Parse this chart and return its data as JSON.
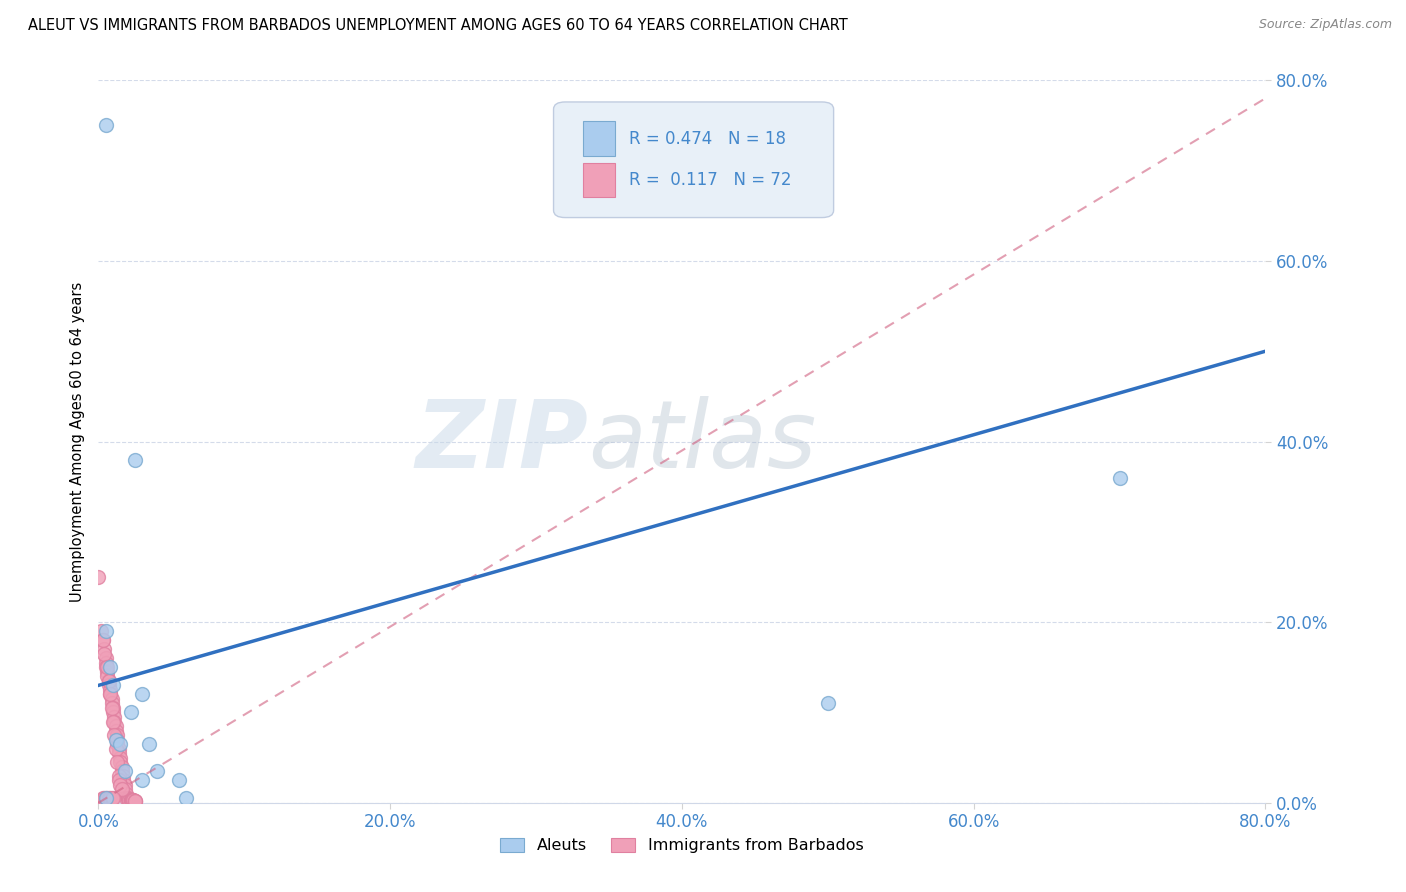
{
  "title": "ALEUT VS IMMIGRANTS FROM BARBADOS UNEMPLOYMENT AMONG AGES 60 TO 64 YEARS CORRELATION CHART",
  "source": "Source: ZipAtlas.com",
  "ylabel": "Unemployment Among Ages 60 to 64 years",
  "xlim": [
    0.0,
    0.8
  ],
  "ylim": [
    0.0,
    0.8
  ],
  "xticks": [
    0.0,
    0.2,
    0.4,
    0.6,
    0.8
  ],
  "yticks": [
    0.0,
    0.2,
    0.4,
    0.6,
    0.8
  ],
  "xticklabels": [
    "0.0%",
    "20.0%",
    "40.0%",
    "60.0%",
    "80.0%"
  ],
  "yticklabels": [
    "0.0%",
    "20.0%",
    "40.0%",
    "60.0%",
    "80.0%"
  ],
  "aleuts_x": [
    0.005,
    0.005,
    0.008,
    0.01,
    0.012,
    0.015,
    0.018,
    0.022,
    0.025,
    0.03,
    0.035,
    0.04,
    0.055,
    0.06,
    0.5,
    0.7,
    0.03,
    0.005
  ],
  "aleuts_y": [
    0.75,
    0.19,
    0.15,
    0.13,
    0.07,
    0.065,
    0.035,
    0.1,
    0.38,
    0.12,
    0.065,
    0.035,
    0.025,
    0.005,
    0.11,
    0.36,
    0.025,
    0.005
  ],
  "barbados_x": [
    0.0,
    0.002,
    0.003,
    0.004,
    0.005,
    0.005,
    0.005,
    0.006,
    0.006,
    0.007,
    0.007,
    0.008,
    0.008,
    0.009,
    0.009,
    0.01,
    0.01,
    0.011,
    0.011,
    0.012,
    0.012,
    0.013,
    0.013,
    0.013,
    0.014,
    0.014,
    0.015,
    0.015,
    0.016,
    0.016,
    0.017,
    0.017,
    0.018,
    0.018,
    0.019,
    0.019,
    0.02,
    0.02,
    0.021,
    0.021,
    0.022,
    0.022,
    0.022,
    0.023,
    0.023,
    0.024,
    0.024,
    0.025,
    0.025,
    0.025,
    0.003,
    0.004,
    0.006,
    0.007,
    0.008,
    0.009,
    0.01,
    0.011,
    0.012,
    0.013,
    0.014,
    0.014,
    0.015,
    0.016,
    0.003,
    0.004,
    0.005,
    0.006,
    0.007,
    0.008,
    0.009,
    0.01
  ],
  "barbados_y": [
    0.25,
    0.19,
    0.18,
    0.17,
    0.16,
    0.155,
    0.15,
    0.145,
    0.14,
    0.135,
    0.13,
    0.125,
    0.12,
    0.115,
    0.11,
    0.105,
    0.1,
    0.095,
    0.09,
    0.085,
    0.08,
    0.075,
    0.07,
    0.065,
    0.06,
    0.055,
    0.05,
    0.045,
    0.04,
    0.035,
    0.03,
    0.025,
    0.02,
    0.015,
    0.01,
    0.005,
    0.005,
    0.004,
    0.003,
    0.003,
    0.003,
    0.003,
    0.003,
    0.003,
    0.003,
    0.003,
    0.003,
    0.002,
    0.002,
    0.002,
    0.18,
    0.165,
    0.15,
    0.135,
    0.12,
    0.105,
    0.09,
    0.075,
    0.06,
    0.045,
    0.03,
    0.025,
    0.02,
    0.015,
    0.005,
    0.005,
    0.005,
    0.005,
    0.005,
    0.005,
    0.005,
    0.005
  ],
  "aleut_color": "#aaccee",
  "barbados_color": "#f0a0b8",
  "aleut_edge_color": "#7aaad0",
  "barbados_edge_color": "#e080a0",
  "aleut_line_color": "#3070c0",
  "barbados_line_color": "#d06080",
  "legend_R_aleut": "R = 0.474",
  "legend_N_aleut": "N = 18",
  "legend_R_barbados": "R =  0.117",
  "legend_N_barbados": "N = 72",
  "watermark_zip": "ZIP",
  "watermark_atlas": "atlas",
  "marker_size": 100,
  "aleut_line_x": [
    0.0,
    0.8
  ],
  "aleut_line_y": [
    0.13,
    0.5
  ],
  "barbados_line_x": [
    0.0,
    0.8
  ],
  "barbados_line_y": [
    0.0,
    0.78
  ],
  "tick_color": "#4488cc",
  "legend_box_color": "#e8f0f8",
  "legend_box_edge": "#c0cce0"
}
